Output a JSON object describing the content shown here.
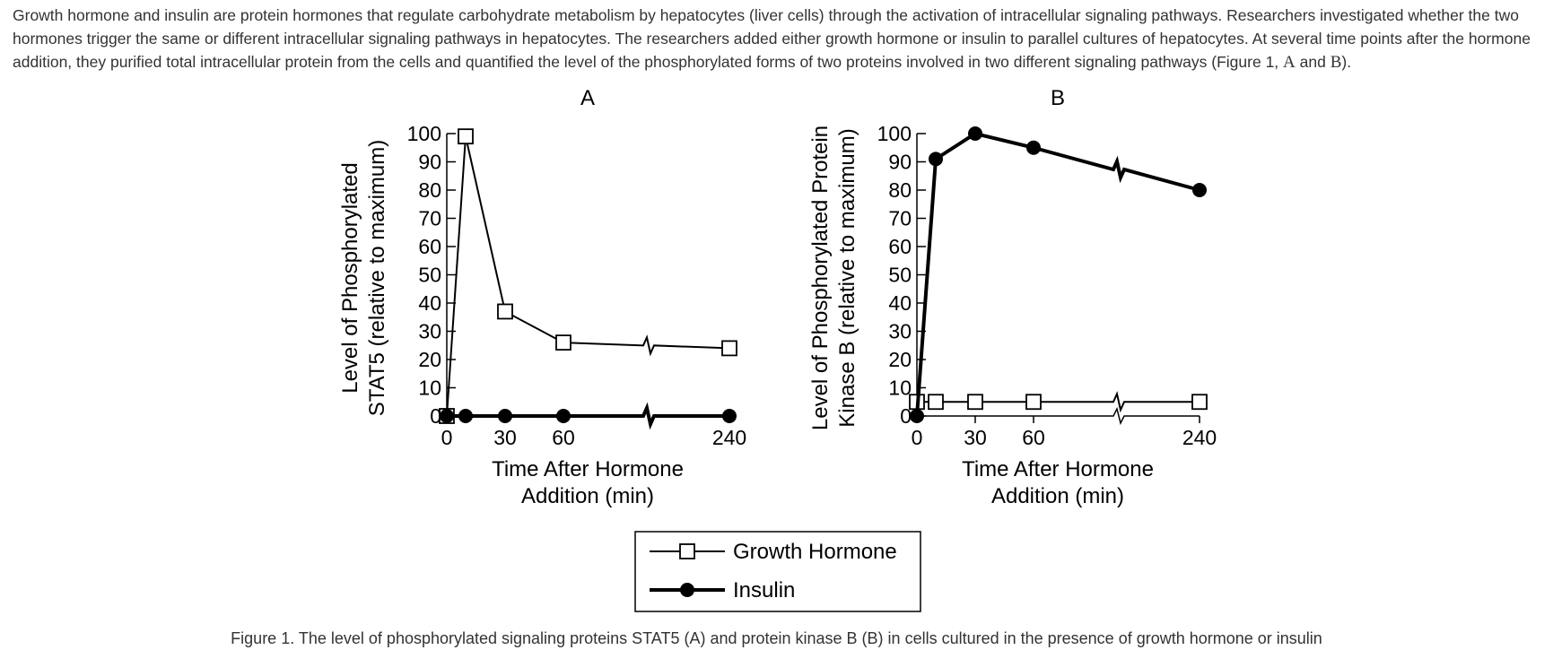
{
  "intro": {
    "text": "Growth hormone and insulin are protein hormones that regulate carbohydrate metabolism by hepatocytes (liver cells) through the activation of intracellular signaling pathways. Researchers investigated whether the two hormones trigger the same or different intracellular signaling pathways in hepatocytes. The researchers added either growth hormone or insulin to parallel cultures of hepatocytes. At several time points after the hormone addition, they purified total intracellular protein from the cells and quantified the level of the phosphorylated forms of two proteins involved in two different signaling pathways (Figure 1, ",
    "fig_a": "A",
    "and": " and ",
    "fig_b": "B",
    "end": ")."
  },
  "caption": "Figure 1. The level of phosphorylated signaling proteins STAT5 (A) and protein kinase B (B) in cells cultured in the presence of growth hormone or insulin",
  "legend": {
    "growth_hormone": "Growth Hormone",
    "insulin": "Insulin"
  },
  "chart_data": [
    {
      "type": "line",
      "title": "A",
      "xlabel_line1": "Time After Hormone",
      "xlabel_line2": "Addition (min)",
      "ylabel_line1": "Level of Phosphorylated",
      "ylabel_line2": "STAT5 (relative to maximum)",
      "ylim": [
        0,
        100
      ],
      "yticks": [
        "0",
        "10",
        "20",
        "30",
        "40",
        "50",
        "60",
        "70",
        "80",
        "90",
        "100"
      ],
      "xticks": [
        "0",
        "30",
        "60",
        "240"
      ],
      "axis_break": "between 60 and 240",
      "series": [
        {
          "name": "Growth Hormone",
          "marker": "open-square",
          "points": [
            {
              "x": "0",
              "y": 0
            },
            {
              "x": "10",
              "y": 99
            },
            {
              "x": "30",
              "y": 37
            },
            {
              "x": "60",
              "y": 26
            },
            {
              "x": "240",
              "y": 24
            }
          ]
        },
        {
          "name": "Insulin",
          "marker": "filled-circle",
          "points": [
            {
              "x": "0",
              "y": 0
            },
            {
              "x": "10",
              "y": 0
            },
            {
              "x": "30",
              "y": 0
            },
            {
              "x": "60",
              "y": 0
            },
            {
              "x": "240",
              "y": 0
            }
          ]
        }
      ]
    },
    {
      "type": "line",
      "title": "B",
      "xlabel_line1": "Time After Hormone",
      "xlabel_line2": "Addition (min)",
      "ylabel_line1": "Level of Phosphorylated Protein",
      "ylabel_line2": "Kinase B (relative to maximum)",
      "ylim": [
        0,
        100
      ],
      "yticks": [
        "0",
        "10",
        "20",
        "30",
        "40",
        "50",
        "60",
        "70",
        "80",
        "90",
        "100"
      ],
      "xticks": [
        "0",
        "30",
        "60",
        "240"
      ],
      "axis_break": "between 60 and 240",
      "series": [
        {
          "name": "Growth Hormone",
          "marker": "open-square",
          "points": [
            {
              "x": "0",
              "y": 5
            },
            {
              "x": "10",
              "y": 5
            },
            {
              "x": "30",
              "y": 5
            },
            {
              "x": "60",
              "y": 5
            },
            {
              "x": "240",
              "y": 5
            }
          ]
        },
        {
          "name": "Insulin",
          "marker": "filled-circle",
          "points": [
            {
              "x": "0",
              "y": 0
            },
            {
              "x": "10",
              "y": 91
            },
            {
              "x": "30",
              "y": 100
            },
            {
              "x": "60",
              "y": 95
            },
            {
              "x": "240",
              "y": 80
            }
          ]
        }
      ]
    }
  ]
}
